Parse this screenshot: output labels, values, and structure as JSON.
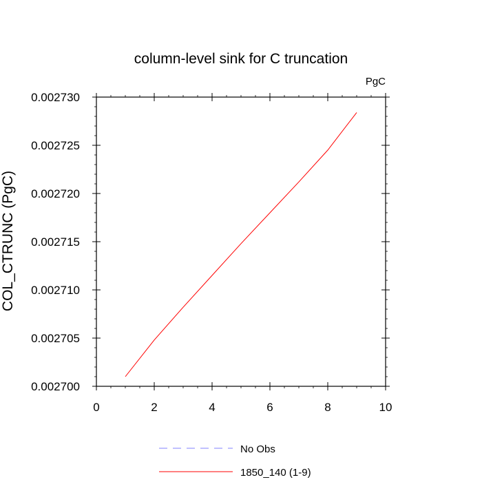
{
  "chart_data": {
    "type": "line",
    "title": "column-level sink for C truncation",
    "units": "PgC",
    "ylabel": "COL_CTRUNC  (PgC)",
    "xlabel": "",
    "xlim": [
      0,
      10
    ],
    "ylim": [
      0.0027,
      0.00273
    ],
    "xticks": [
      "0",
      "2",
      "4",
      "6",
      "8",
      "10"
    ],
    "yticks": [
      "0.002700",
      "0.002705",
      "0.002710",
      "0.002715",
      "0.002720",
      "0.002725",
      "0.002730"
    ],
    "grid": false,
    "legend_position": "bottom",
    "series": [
      {
        "name": "1850_140 (1-9)",
        "color": "#ff0000",
        "dash": "solid",
        "x": [
          1,
          2,
          3,
          4,
          5,
          6,
          7,
          8,
          9
        ],
        "y": [
          0.002701,
          0.0027048,
          0.0027082,
          0.0027115,
          0.0027148,
          0.002718,
          0.0027212,
          0.0027245,
          0.0027284
        ]
      }
    ],
    "legend": [
      {
        "label": "No Obs",
        "color": "#8080ff",
        "dash": "dashed"
      },
      {
        "label": "1850_140 (1-9)",
        "color": "#ff0000",
        "dash": "solid"
      }
    ]
  }
}
